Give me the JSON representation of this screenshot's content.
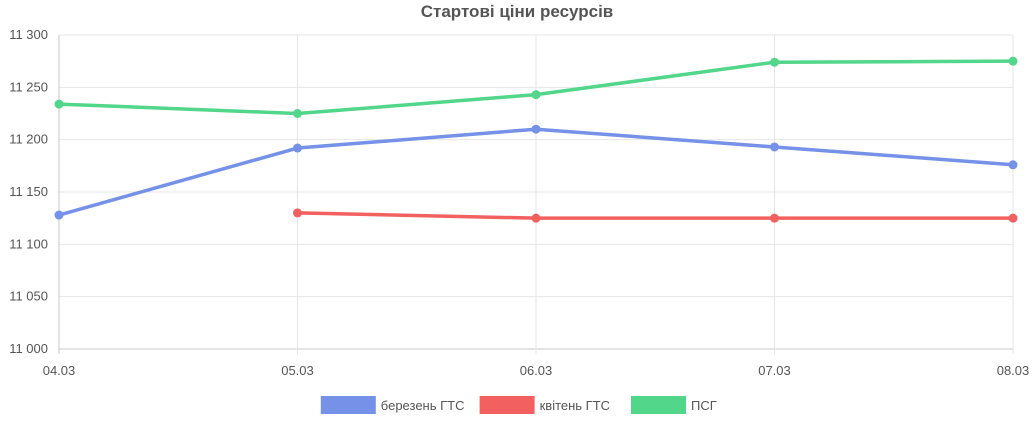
{
  "chart_data": {
    "type": "line",
    "title": "Стартові ціни ресурсів",
    "categories": [
      "04.03",
      "05.03",
      "06.03",
      "07.03",
      "08.03"
    ],
    "ylim": [
      11000,
      11300
    ],
    "yticks": [
      11000,
      11050,
      11100,
      11150,
      11200,
      11250,
      11300
    ],
    "ytick_labels": [
      "11 000",
      "11 050",
      "11 100",
      "11 150",
      "11 200",
      "11 250",
      "11 300"
    ],
    "grid": true,
    "legend_position": "bottom",
    "series": [
      {
        "name": "березень ГТС",
        "color": "#7591e8",
        "values": [
          11128,
          11192,
          11210,
          11193,
          11176
        ]
      },
      {
        "name": "квітень ГТС",
        "color": "#f26060",
        "values": [
          null,
          11130,
          11125,
          11125,
          11125
        ]
      },
      {
        "name": "ПСГ",
        "color": "#52d68a",
        "values": [
          11234,
          11225,
          11243,
          11274,
          11275
        ]
      }
    ]
  }
}
